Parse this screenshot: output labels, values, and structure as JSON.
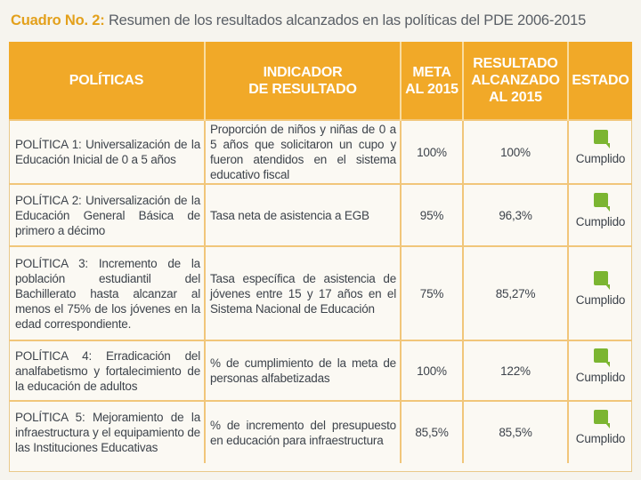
{
  "caption": {
    "lead": "Cuadro No. 2:",
    "text": " Resumen de los resultados alcanzados en las políticas del PDE 2006-2015"
  },
  "colors": {
    "header_bg": "#f1a928",
    "grid": "#f1c67a",
    "status_icon": "#7bb531"
  },
  "table": {
    "headers": {
      "politicas": "POLÍTICAS",
      "indicador_1": "INDICADOR",
      "indicador_2": "DE RESULTADO",
      "meta_1": "META",
      "meta_2": "AL 2015",
      "resultado_1": "RESULTADO",
      "resultado_2": "ALCANZADO",
      "resultado_3": "AL 2015",
      "estado": "ESTADO"
    },
    "rows": [
      {
        "politica": "POLÍTICA 1: Universalización de la Educación Inicial de 0 a 5 años",
        "indicador": "Proporción de niños y niñas de 0 a 5 años que solicitaron un cupo y fueron atendidos en el sistema educativo fiscal",
        "meta": "100%",
        "resultado": "100%",
        "estado": "Cumplido"
      },
      {
        "politica": "POLÍTICA 2: Universalización de la Educación General Básica de primero a décimo",
        "indicador": "Tasa neta de asistencia a EGB",
        "meta": "95%",
        "resultado": "96,3%",
        "estado": "Cumplido"
      },
      {
        "politica": "POLÍTICA 3: Incremento de la población estudiantil del Bachillerato hasta alcanzar al menos el 75% de los jóvenes en la edad correspondiente.",
        "indicador": "Tasa específica de asistencia de jóvenes entre 15 y 17 años en el Sistema Nacional de Educación",
        "meta": "75%",
        "resultado": "85,27%",
        "estado": "Cumplido"
      },
      {
        "politica": "POLÍTICA 4: Erradicación del analfabetismo y fortalecimiento de la educación de adultos",
        "indicador": "% de cumplimiento de la meta de personas alfabetizadas",
        "meta": "100%",
        "resultado": "122%",
        "estado": "Cumplido"
      },
      {
        "politica": "POLÍTICA 5: Mejoramiento de la infraestructura y el equipamiento de las Instituciones Educativas",
        "indicador": "% de incremento del presupuesto en educación para infraestructura",
        "meta": "85,5%",
        "resultado": "85,5%",
        "estado": "Cumplido"
      }
    ]
  }
}
